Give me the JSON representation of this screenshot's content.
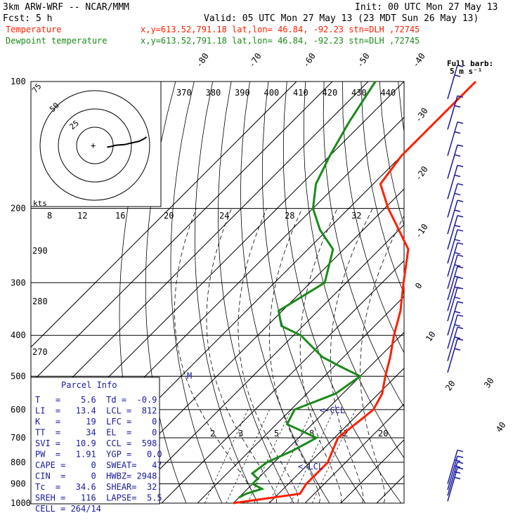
{
  "header": {
    "model": "3km ARW-WRF -- NCAR/MMM",
    "init": "Init: 00 UTC Mon 27 May 13",
    "fcst": "Fcst:      5 h",
    "valid": "Valid: 05 UTC Mon 27 May 13 (23 MDT Sun 26 May 13)",
    "temp_label": "Temperature",
    "dew_label": "Dewpoint temperature",
    "loc_text": "x,y=613.52,791.18   lat,lon= 46.84, -92.23   stn=DLH ,72745"
  },
  "colors": {
    "temperature": "#ff2000",
    "dewpoint": "#1a8a1a",
    "index_text": "#1a1aa0"
  },
  "barb_legend": {
    "line1": "Full barb:",
    "line2": "5 m s⁻¹"
  },
  "hodograph": {
    "ring_labels": [
      "75",
      "50",
      "25"
    ],
    "units": "kts",
    "cross_label": "+"
  },
  "parcel": {
    "title": "Parcel Info",
    "rows": [
      "T   =    5.6  Td =  -0.9",
      "LI  =   13.4  LCL =  812.",
      "K   =     19  LFC =    0.",
      "TT  =     34  EL  =    0.",
      "SVI =   10.9  CCL =  598.",
      "PW  =   1.91  YGP =   0.0",
      "CAPE =     0  SWEAT=   47",
      "CIN  =     0  HWBZ= 2948.",
      "Tc  =   34.6  SHEAR=  32.",
      "SREH =   116  LAPSE=  5.5",
      "CELL = 264/14"
    ]
  },
  "annotations": {
    "ccl": "<-CCL",
    "lcl": "<-LCL",
    "m": "M"
  },
  "chart_data": {
    "type": "line",
    "pressure_levels": [
      100,
      200,
      300,
      400,
      500,
      600,
      700,
      800,
      900,
      1000
    ],
    "isotherm_labels": [
      "-80",
      "-70",
      "-60",
      "-50",
      "-40",
      "-30",
      "-20",
      "-10",
      "0",
      "10",
      "20",
      "30",
      "40"
    ],
    "theta_labels": [
      "370",
      "380",
      "390",
      "400",
      "410",
      "420",
      "430",
      "440"
    ],
    "theta_left_labels": [
      "290",
      "280",
      "270"
    ],
    "mixing_ratio_labels": [
      "2",
      "3",
      "5",
      "8",
      "12",
      "20"
    ],
    "ring_scale_labels": [
      "8",
      "12",
      "16",
      "20",
      "24",
      "28",
      "32"
    ],
    "series": [
      {
        "name": "Temperature",
        "color": "#ff2000",
        "points": [
          [
            1000,
            -10
          ],
          [
            950,
            6
          ],
          [
            900,
            5
          ],
          [
            850,
            5
          ],
          [
            800,
            5
          ],
          [
            750,
            3
          ],
          [
            700,
            1
          ],
          [
            650,
            2
          ],
          [
            600,
            3
          ],
          [
            550,
            1
          ],
          [
            500,
            -3
          ],
          [
            450,
            -7
          ],
          [
            400,
            -12
          ],
          [
            350,
            -17
          ],
          [
            300,
            -24
          ],
          [
            250,
            -32
          ],
          [
            225,
            -40
          ],
          [
            200,
            -49
          ],
          [
            175,
            -58
          ],
          [
            150,
            -60
          ],
          [
            125,
            -60
          ],
          [
            100,
            -60
          ]
        ]
      },
      {
        "name": "Dewpoint temperature",
        "color": "#1a8a1a",
        "points": [
          [
            970,
            -10
          ],
          [
            950,
            -9
          ],
          [
            925,
            -6
          ],
          [
            900,
            -10
          ],
          [
            875,
            -10
          ],
          [
            850,
            -13
          ],
          [
            800,
            -12
          ],
          [
            750,
            -8
          ],
          [
            700,
            -5
          ],
          [
            650,
            -17
          ],
          [
            600,
            -19
          ],
          [
            550,
            -12
          ],
          [
            500,
            -10
          ],
          [
            475,
            -18
          ],
          [
            450,
            -26
          ],
          [
            400,
            -38
          ],
          [
            380,
            -46
          ],
          [
            350,
            -51
          ],
          [
            300,
            -46
          ],
          [
            250,
            -53
          ],
          [
            225,
            -62
          ],
          [
            200,
            -70
          ],
          [
            175,
            -76
          ],
          [
            150,
            -80
          ],
          [
            125,
            -84
          ],
          [
            100,
            -88
          ]
        ]
      }
    ],
    "hodograph_points": [
      [
        50,
        -20
      ],
      [
        70,
        -10
      ],
      [
        80,
        0
      ],
      [
        95,
        5
      ],
      [
        120,
        10
      ],
      [
        150,
        30
      ],
      [
        180,
        50
      ],
      [
        200,
        80
      ],
      [
        210,
        100
      ]
    ],
    "wind_barbs": {
      "pressures": [
        110,
        130,
        150,
        170,
        190,
        210,
        230,
        250,
        270,
        290,
        310,
        330,
        350,
        370,
        400,
        430,
        460,
        490,
        900,
        930,
        960,
        990
      ],
      "flags": [
        "F",
        "F",
        "F",
        "F",
        "F",
        "F",
        "F",
        "F",
        "F",
        "F",
        "F",
        "F",
        "F",
        "F",
        "F",
        "F",
        "F",
        "F",
        "F",
        "F",
        "F",
        "F"
      ]
    }
  }
}
